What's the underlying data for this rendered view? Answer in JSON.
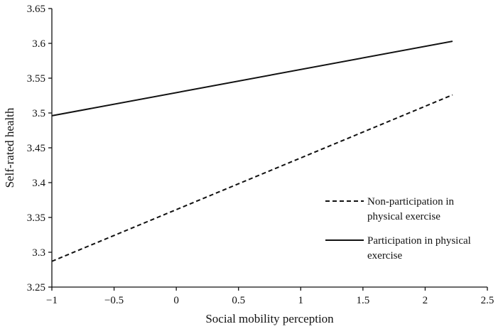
{
  "chart_data": {
    "type": "line",
    "xlabel": "Social mobility perception",
    "ylabel": "Self-rated health",
    "xlim": [
      -1,
      2.5
    ],
    "ylim": [
      3.25,
      3.65
    ],
    "x_ticks": [
      "−1",
      "−0.5",
      "0",
      "0.5",
      "1",
      "1.5",
      "2",
      "2.5"
    ],
    "x_tick_values": [
      -1,
      -0.5,
      0,
      0.5,
      1,
      1.5,
      2,
      2.5
    ],
    "y_ticks": [
      "3.25",
      "3.3",
      "3.35",
      "3.4",
      "3.45",
      "3.5",
      "3.55",
      "3.6",
      "3.65"
    ],
    "y_tick_values": [
      3.25,
      3.3,
      3.35,
      3.4,
      3.45,
      3.5,
      3.55,
      3.6,
      3.65
    ],
    "grid": false,
    "legend_position": "right",
    "series": [
      {
        "name": "Non-participation in physical exercise",
        "legend_lines": [
          "Non-participation in",
          "physical exercise"
        ],
        "style": "dashed",
        "x": [
          -1,
          2.22
        ],
        "y": [
          3.287,
          3.526
        ]
      },
      {
        "name": "Participation in physical exercise",
        "legend_lines": [
          "Participation in physical",
          "exercise"
        ],
        "style": "solid",
        "x": [
          -1,
          2.22
        ],
        "y": [
          3.496,
          3.603
        ]
      }
    ],
    "line_color": "#111111"
  }
}
